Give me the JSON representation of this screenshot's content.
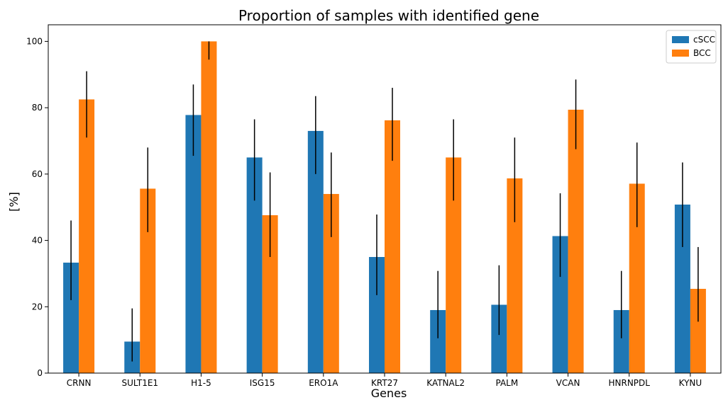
{
  "chart_data": {
    "type": "bar",
    "title": "Proportion of samples with identified gene",
    "xlabel": "Genes",
    "ylabel": "[%]",
    "ylim": [
      0,
      105
    ],
    "yticks": [
      0,
      20,
      40,
      60,
      80,
      100
    ],
    "categories": [
      "CRNN",
      "SULT1E1",
      "H1-5",
      "ISG15",
      "ERO1A",
      "KRT27",
      "KATNAL2",
      "PALM",
      "VCAN",
      "HNRNPDL",
      "KYNU"
    ],
    "series": [
      {
        "name": "cSCC",
        "color": "#1f77b4",
        "values": [
          33.3,
          9.5,
          77.8,
          65.0,
          73.0,
          35.0,
          19.0,
          20.6,
          41.3,
          19.0,
          50.8
        ],
        "err_low": [
          22.0,
          3.5,
          65.5,
          52.0,
          60.0,
          23.5,
          10.5,
          11.5,
          29.0,
          10.5,
          38.0
        ],
        "err_high": [
          46.0,
          19.5,
          87.0,
          76.5,
          83.5,
          47.8,
          30.8,
          32.5,
          54.2,
          30.8,
          63.5
        ]
      },
      {
        "name": "BCC",
        "color": "#ff7f0e",
        "values": [
          82.5,
          55.6,
          100.0,
          47.6,
          54.0,
          76.2,
          65.0,
          58.7,
          79.4,
          57.1,
          25.4
        ],
        "err_low": [
          71.0,
          42.5,
          94.5,
          35.0,
          41.0,
          64.0,
          52.0,
          45.5,
          67.5,
          44.0,
          15.5
        ],
        "err_high": [
          91.0,
          68.0,
          100.0,
          60.5,
          66.5,
          86.0,
          76.5,
          71.0,
          88.5,
          69.5,
          38.0
        ]
      }
    ],
    "legend": {
      "placement": "top-right"
    },
    "grid": false
  }
}
